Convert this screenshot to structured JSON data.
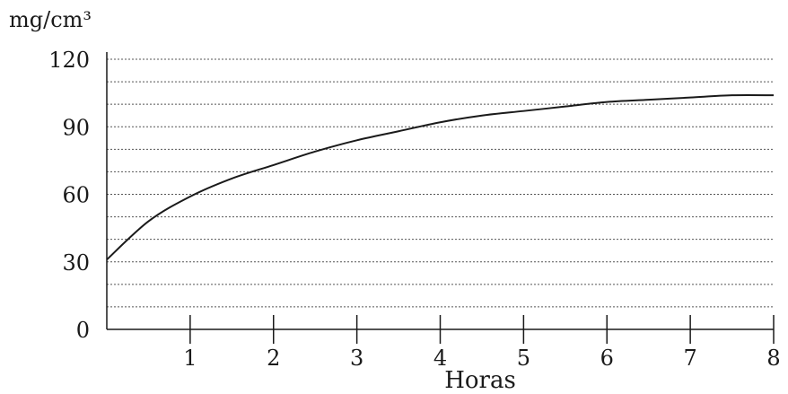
{
  "chart_data": {
    "type": "line",
    "title": "",
    "ylabel": "mg/cm³",
    "xlabel": "Horas",
    "xlim": [
      0,
      8
    ],
    "ylim": [
      0,
      120
    ],
    "x_ticks": [
      1,
      2,
      3,
      4,
      5,
      6,
      7,
      8
    ],
    "x_tick_labels": [
      "1",
      "2",
      "3",
      "4",
      "5",
      "6",
      "7",
      "8"
    ],
    "y_ticks": [
      0,
      30,
      60,
      90,
      120
    ],
    "y_tick_labels": [
      "0",
      "30",
      "60",
      "90",
      "120"
    ],
    "grid": "horizontal dotted every 10",
    "colors": {
      "line": "#1a1a1a",
      "grid": "#555555",
      "axis": "#1a1a1a"
    },
    "series": [
      {
        "x": [
          0,
          0.5,
          1,
          1.5,
          2,
          2.5,
          3,
          3.5,
          4,
          4.5,
          5,
          5.5,
          6,
          6.5,
          7,
          7.5,
          8
        ],
        "values": [
          31,
          48,
          59,
          67,
          73,
          79,
          84,
          88,
          92,
          95,
          97,
          99,
          101,
          102,
          103,
          104,
          104
        ]
      }
    ]
  }
}
